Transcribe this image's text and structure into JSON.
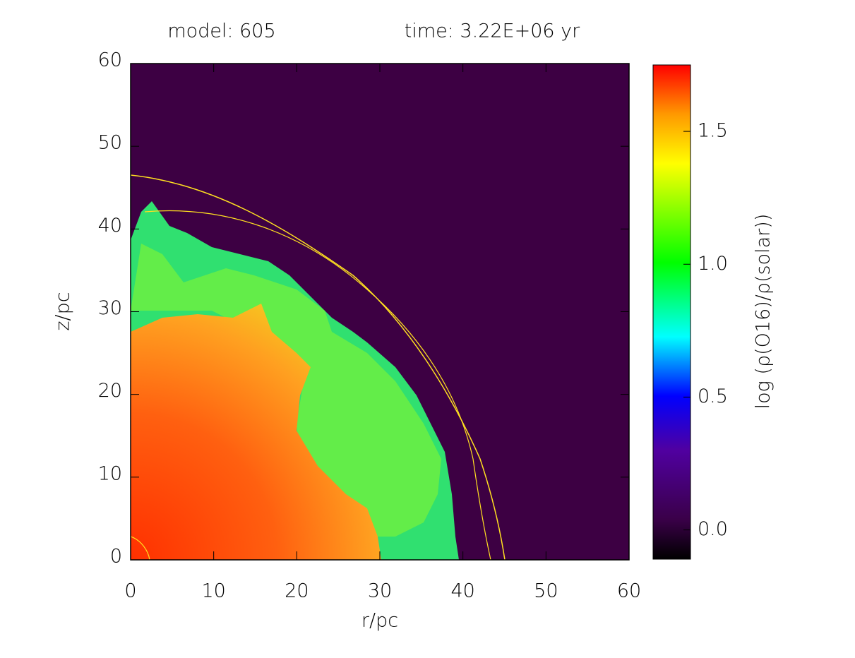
{
  "chart_data": {
    "type": "heatmap",
    "title_left": "model: 605",
    "title_right": "time: 3.22E+06 yr",
    "x_label": "r/pc",
    "y_label": "z/pc",
    "colorbar_label": "log (ρ(O16)/ρ(solar))",
    "xlim": [
      0,
      60
    ],
    "xticks": [
      0,
      10,
      20,
      30,
      40,
      50,
      60
    ],
    "ylim": [
      0,
      60
    ],
    "yticks": [
      0,
      10,
      20,
      30,
      40,
      50,
      60
    ],
    "clim": [
      -0.11,
      1.75
    ],
    "cticks": [
      {
        "value": 0,
        "label": "0.0"
      },
      {
        "value": 0.5,
        "label": "0.5"
      },
      {
        "value": 1,
        "label": "1.0"
      },
      {
        "value": 1.5,
        "label": "1.5"
      }
    ]
  }
}
